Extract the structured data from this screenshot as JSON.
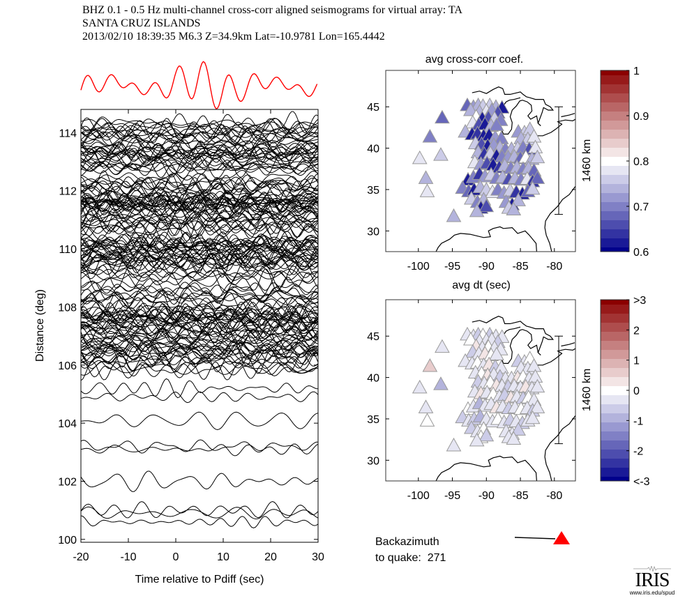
{
  "header": {
    "line1": "BHZ  0.1 - 0.5 Hz  multi-channel cross-corr aligned seismograms for virtual array: TA",
    "line2": "SANTA CRUZ ISLANDS",
    "line3": "2013/02/10  18:39:35  M6.3  Z=34.9km Lat=-10.9781 Lon=165.4442"
  },
  "backazimuth": {
    "line1": "Backazimuth",
    "line2_prefix": "to quake:",
    "value": "271",
    "marker_color": "#ff0000"
  },
  "logo": {
    "name": "IRIS",
    "url": "www.iris.edu/spud"
  },
  "chart_data": [
    {
      "type": "line",
      "title": "",
      "xlabel": "Time relative to Pdiff (sec)",
      "ylabel": "Distance (deg)",
      "xlim": [
        -20,
        30
      ],
      "ylim": [
        99.9,
        114.8
      ],
      "xticks": [
        "-20",
        "-10",
        "0",
        "10",
        "20",
        "30"
      ],
      "yticks": [
        "100",
        "102",
        "104",
        "106",
        "108",
        "110",
        "112",
        "114"
      ],
      "stack_trace_color": "#ff0000",
      "trace_color": "#000000",
      "dense_band_range": [
        105.8,
        114.4
      ],
      "isolated_trace_distances": [
        100.6,
        100.9,
        101.0,
        102.0,
        103.1,
        103.2,
        104.1,
        104.9,
        105.2
      ]
    },
    {
      "type": "scatter",
      "title": "avg cross-corr coef.",
      "xlabel": "avg dt (sec)",
      "xlim": [
        -104.8,
        -76.9
      ],
      "ylim": [
        27.5,
        49.4
      ],
      "xticks": [
        "-100",
        "-95",
        "-90",
        "-85",
        "-80"
      ],
      "yticks": [
        "30",
        "35",
        "40",
        "45"
      ],
      "scale_bar_label": "1460 km",
      "colorbar": {
        "min": 0.6,
        "max": 1.0,
        "ticks": [
          "0.6",
          "0.7",
          "0.8",
          "0.9",
          "1"
        ],
        "low_color": "#00008b",
        "mid_color": "#ffffff",
        "high_color": "#8b0000"
      }
    },
    {
      "type": "scatter",
      "title": "",
      "xlabel": "",
      "xlim": [
        -104.8,
        -76.9
      ],
      "ylim": [
        27.5,
        49.4
      ],
      "xticks": [
        "-100",
        "-95",
        "-90",
        "-85",
        "-80"
      ],
      "yticks": [
        "30",
        "35",
        "40",
        "45"
      ],
      "scale_bar_label": "1460 km",
      "colorbar": {
        "min": -3,
        "max": 3,
        "ticks": [
          "<-3",
          "-2",
          "-1",
          "0",
          "1",
          "2",
          ">3"
        ],
        "low_color": "#00008b",
        "mid_color": "#ffffff",
        "high_color": "#8b0000"
      }
    }
  ],
  "stations": [
    [
      -96.5,
      43.7
    ],
    [
      -98.3,
      41.4
    ],
    [
      -99.8,
      38.8
    ],
    [
      -96.7,
      39.2
    ],
    [
      -98.9,
      36.4
    ],
    [
      -98.7,
      34.8
    ],
    [
      -94.8,
      31.8
    ],
    [
      -92.8,
      45.2
    ],
    [
      -91.9,
      45.0
    ],
    [
      -91.2,
      45.2
    ],
    [
      -90.5,
      45.1
    ],
    [
      -89.5,
      45.2
    ],
    [
      -88.6,
      45.0
    ],
    [
      -87.7,
      44.9
    ],
    [
      -92.3,
      44.6
    ],
    [
      -91.0,
      44.4
    ],
    [
      -90.0,
      44.5
    ],
    [
      -89.2,
      44.6
    ],
    [
      -88.3,
      44.3
    ],
    [
      -91.5,
      43.8
    ],
    [
      -90.6,
      43.6
    ],
    [
      -89.7,
      43.7
    ],
    [
      -88.8,
      43.6
    ],
    [
      -87.9,
      43.4
    ],
    [
      -92.0,
      43.1
    ],
    [
      -91.1,
      42.9
    ],
    [
      -90.2,
      42.9
    ],
    [
      -89.3,
      42.7
    ],
    [
      -88.5,
      42.8
    ],
    [
      -93.1,
      42.0
    ],
    [
      -92.1,
      41.7
    ],
    [
      -91.3,
      41.8
    ],
    [
      -90.4,
      41.5
    ],
    [
      -89.6,
      41.6
    ],
    [
      -88.7,
      41.3
    ],
    [
      -87.8,
      41.2
    ],
    [
      -85.3,
      42.0
    ],
    [
      -84.4,
      41.9
    ],
    [
      -83.6,
      42.3
    ],
    [
      -84.9,
      41.2
    ],
    [
      -83.9,
      41.1
    ],
    [
      -83.0,
      41.4
    ],
    [
      -91.6,
      40.6
    ],
    [
      -90.7,
      40.5
    ],
    [
      -89.8,
      40.3
    ],
    [
      -88.9,
      40.4
    ],
    [
      -88.0,
      40.1
    ],
    [
      -87.2,
      39.9
    ],
    [
      -86.3,
      39.9
    ],
    [
      -85.4,
      40.0
    ],
    [
      -84.6,
      40.1
    ],
    [
      -83.7,
      39.9
    ],
    [
      -82.8,
      40.1
    ],
    [
      -91.2,
      39.5
    ],
    [
      -90.3,
      39.3
    ],
    [
      -89.4,
      39.4
    ],
    [
      -88.5,
      39.1
    ],
    [
      -87.7,
      39.0
    ],
    [
      -86.8,
      38.9
    ],
    [
      -85.9,
      39.0
    ],
    [
      -85.0,
      38.8
    ],
    [
      -84.2,
      38.9
    ],
    [
      -83.3,
      38.7
    ],
    [
      -82.5,
      38.9
    ],
    [
      -91.7,
      38.3
    ],
    [
      -90.8,
      38.1
    ],
    [
      -89.9,
      38.2
    ],
    [
      -89.0,
      38.0
    ],
    [
      -88.1,
      37.7
    ],
    [
      -87.3,
      37.9
    ],
    [
      -86.4,
      37.6
    ],
    [
      -85.5,
      37.7
    ],
    [
      -84.6,
      37.5
    ],
    [
      -83.8,
      37.6
    ],
    [
      -83.0,
      37.3
    ],
    [
      -92.7,
      36.2
    ],
    [
      -91.9,
      36.5
    ],
    [
      -91.0,
      36.9
    ],
    [
      -90.2,
      36.6
    ],
    [
      -89.3,
      36.8
    ],
    [
      -88.5,
      36.4
    ],
    [
      -87.6,
      36.5
    ],
    [
      -86.7,
      36.3
    ],
    [
      -85.8,
      36.4
    ],
    [
      -84.9,
      36.2
    ],
    [
      -84.0,
      36.3
    ],
    [
      -83.2,
      36.0
    ],
    [
      -82.5,
      36.4
    ],
    [
      -93.5,
      35.2
    ],
    [
      -92.6,
      34.8
    ],
    [
      -91.8,
      35.0
    ],
    [
      -90.9,
      35.3
    ],
    [
      -90.0,
      35.0
    ],
    [
      -89.1,
      34.7
    ],
    [
      -88.3,
      35.0
    ],
    [
      -87.4,
      34.6
    ],
    [
      -86.5,
      34.9
    ],
    [
      -85.6,
      34.7
    ],
    [
      -84.7,
      34.5
    ],
    [
      -83.9,
      34.8
    ],
    [
      -83.2,
      35.1
    ],
    [
      -92.2,
      33.9
    ],
    [
      -91.3,
      33.5
    ],
    [
      -90.4,
      33.8
    ],
    [
      -87.1,
      33.5
    ],
    [
      -86.2,
      33.2
    ],
    [
      -85.3,
      33.7
    ],
    [
      -86.7,
      32.8
    ],
    [
      -90.8,
      32.8
    ],
    [
      -90.0,
      33.0
    ],
    [
      -91.4,
      32.4
    ],
    [
      -86.0,
      32.6
    ]
  ],
  "station_values_coef": [
    0.68,
    0.71,
    0.78,
    0.75,
    0.74,
    0.77,
    0.74,
    0.68,
    0.72,
    0.74,
    0.76,
    0.75,
    0.73,
    0.62,
    0.74,
    0.73,
    0.78,
    0.72,
    0.66,
    0.8,
    0.62,
    0.65,
    0.76,
    0.7,
    0.77,
    0.66,
    0.62,
    0.73,
    0.7,
    0.73,
    0.62,
    0.63,
    0.62,
    0.61,
    0.72,
    0.71,
    0.72,
    0.76,
    0.75,
    0.74,
    0.75,
    0.77,
    0.75,
    0.65,
    0.62,
    0.72,
    0.74,
    0.7,
    0.73,
    0.76,
    0.71,
    0.66,
    0.77,
    0.73,
    0.63,
    0.76,
    0.62,
    0.7,
    0.72,
    0.74,
    0.68,
    0.8,
    0.74,
    0.75,
    0.77,
    0.72,
    0.66,
    0.62,
    0.64,
    0.74,
    0.71,
    0.73,
    0.7,
    0.74,
    0.68,
    0.62,
    0.7,
    0.63,
    0.72,
    0.75,
    0.71,
    0.73,
    0.66,
    0.74,
    0.7,
    0.77,
    0.64,
    0.69,
    0.71,
    0.68,
    0.62,
    0.73,
    0.75,
    0.77,
    0.71,
    0.72,
    0.76,
    0.64,
    0.62,
    0.67,
    0.76,
    0.76,
    0.7,
    0.73,
    0.72,
    0.62,
    0.74,
    0.75,
    0.62,
    0.66,
    0.74,
    0.74
  ],
  "station_values_dt": [
    -0.3,
    0.5,
    -0.4,
    -0.8,
    -0.2,
    0.0,
    -0.2,
    -0.2,
    -0.3,
    -0.5,
    -0.1,
    -0.7,
    -0.2,
    -0.3,
    -0.1,
    -0.4,
    -0.2,
    -0.3,
    -0.5,
    0.2,
    -0.4,
    -0.1,
    -0.3,
    -0.2,
    -0.5,
    -0.2,
    0.3,
    -0.1,
    -0.4,
    -0.2,
    -0.3,
    -0.1,
    -0.4,
    0.4,
    -0.5,
    -0.2,
    -0.6,
    -0.2,
    -0.1,
    -0.3,
    -0.4,
    -0.2,
    -0.3,
    -0.1,
    0.2,
    -0.4,
    -0.6,
    -0.2,
    -0.3,
    0.3,
    -0.1,
    -0.4,
    -0.2,
    -0.5,
    -0.2,
    -0.1,
    0.4,
    -0.3,
    -0.6,
    -0.2,
    -0.4,
    0.3,
    -0.2,
    -0.3,
    -0.2,
    0.3,
    -0.4,
    -0.1,
    -0.3,
    -0.5,
    0.2,
    -0.2,
    -0.6,
    -0.1,
    -0.3,
    -0.1,
    -0.4,
    -0.9,
    -0.2,
    -0.3,
    0.2,
    -0.4,
    -0.6,
    -0.2,
    -0.1,
    -0.3,
    -0.5,
    -0.2,
    -0.5,
    -0.3,
    -0.6,
    -0.8,
    -0.2,
    -0.4,
    -0.1,
    -0.3,
    -0.5,
    -0.2,
    -0.6,
    -0.4,
    -0.2,
    -0.7,
    -0.3,
    -0.1,
    -0.4,
    -0.2,
    -0.6,
    -0.3,
    -0.1,
    -0.5,
    -0.2,
    -0.3
  ]
}
